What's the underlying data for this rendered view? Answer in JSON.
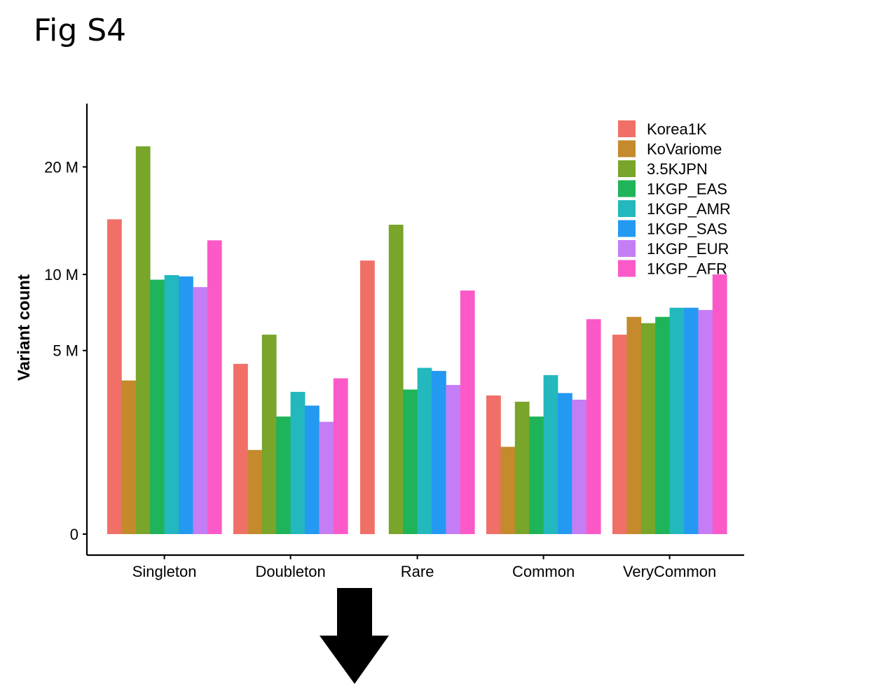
{
  "figure_label": "Fig S4",
  "chart_data": {
    "type": "bar",
    "ylabel": "Variant count",
    "xlabel": "",
    "categories": [
      "Singleton",
      "Doubleton",
      "Rare",
      "Common",
      "VeryCommon"
    ],
    "yticks": [
      {
        "value": 0,
        "label": "0"
      },
      {
        "value": 5000000,
        "label": "5 M"
      },
      {
        "value": 10000000,
        "label": "10 M"
      },
      {
        "value": 20000000,
        "label": "20 M"
      }
    ],
    "y_scale": "sqrt",
    "ylim": [
      0,
      25000000
    ],
    "legend_position": "top-right",
    "grid": false,
    "series": [
      {
        "name": "Korea1K",
        "color": "#F07067",
        "values": [
          14700000,
          4300000,
          11100000,
          2850000,
          5900000
        ]
      },
      {
        "name": "KoVariome",
        "color": "#C48A2C",
        "values": [
          3500000,
          1050000,
          0,
          1130000,
          7000000
        ]
      },
      {
        "name": "3.5KJPN",
        "color": "#78A52A",
        "values": [
          22300000,
          5900000,
          14200000,
          2600000,
          6600000
        ]
      },
      {
        "name": "1KGP_EAS",
        "color": "#1FB45A",
        "values": [
          9600000,
          2050000,
          3100000,
          2050000,
          7000000
        ]
      },
      {
        "name": "1KGP_AMR",
        "color": "#22B8BD",
        "values": [
          9950000,
          3000000,
          4100000,
          3750000,
          7600000
        ]
      },
      {
        "name": "1KGP_SAS",
        "color": "#2399F2",
        "values": [
          9850000,
          2450000,
          3950000,
          2950000,
          7600000
        ]
      },
      {
        "name": "1KGP_EUR",
        "color": "#C57DF5",
        "values": [
          9050000,
          1870000,
          3300000,
          2680000,
          7450000
        ]
      },
      {
        "name": "1KGP_AFR",
        "color": "#FB59C8",
        "values": [
          12800000,
          3600000,
          8800000,
          6850000,
          10000000
        ]
      }
    ]
  }
}
